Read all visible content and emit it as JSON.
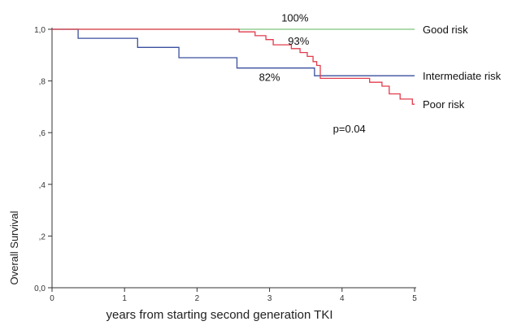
{
  "chart_data": {
    "type": "line",
    "step": true,
    "xlabel": "years from starting second generation TKI",
    "ylabel": "Overall Survival",
    "xlim": [
      0,
      5
    ],
    "ylim": [
      0,
      1
    ],
    "xticks": [
      0,
      1,
      2,
      3,
      4,
      5
    ],
    "xtick_labels": [
      "0",
      "1",
      "2",
      "3",
      "4",
      "5"
    ],
    "yticks": [
      0,
      0.2,
      0.4,
      0.6,
      0.8,
      1.0
    ],
    "ytick_labels": [
      "0,0",
      ",2",
      ",4",
      ",6",
      ",8",
      "1,0"
    ],
    "grid": false,
    "legend": "right-of-plot labels",
    "series": [
      {
        "name": "Good risk",
        "color": "#7ec47e",
        "points": [
          [
            0,
            1.0
          ],
          [
            5,
            1.0
          ]
        ]
      },
      {
        "name": "Intermediate risk",
        "color": "#3a4f9e",
        "points": [
          [
            0,
            1.0
          ],
          [
            0.36,
            1.0
          ],
          [
            0.36,
            0.965
          ],
          [
            1.18,
            0.965
          ],
          [
            1.18,
            0.93
          ],
          [
            1.75,
            0.93
          ],
          [
            1.75,
            0.89
          ],
          [
            2.55,
            0.89
          ],
          [
            2.55,
            0.85
          ],
          [
            3.62,
            0.85
          ],
          [
            3.62,
            0.82
          ],
          [
            5,
            0.82
          ]
        ]
      },
      {
        "name": "Poor risk",
        "color": "#e23b4b",
        "points": [
          [
            0,
            1.0
          ],
          [
            2.58,
            1.0
          ],
          [
            2.58,
            0.99
          ],
          [
            2.8,
            0.99
          ],
          [
            2.8,
            0.975
          ],
          [
            2.95,
            0.975
          ],
          [
            2.95,
            0.96
          ],
          [
            3.05,
            0.96
          ],
          [
            3.05,
            0.94
          ],
          [
            3.3,
            0.94
          ],
          [
            3.3,
            0.925
          ],
          [
            3.42,
            0.925
          ],
          [
            3.42,
            0.91
          ],
          [
            3.52,
            0.91
          ],
          [
            3.52,
            0.895
          ],
          [
            3.6,
            0.895
          ],
          [
            3.6,
            0.875
          ],
          [
            3.65,
            0.875
          ],
          [
            3.65,
            0.86
          ],
          [
            3.7,
            0.86
          ],
          [
            3.7,
            0.81
          ],
          [
            4.38,
            0.81
          ],
          [
            4.38,
            0.795
          ],
          [
            4.55,
            0.795
          ],
          [
            4.55,
            0.78
          ],
          [
            4.65,
            0.78
          ],
          [
            4.65,
            0.75
          ],
          [
            4.8,
            0.75
          ],
          [
            4.8,
            0.73
          ],
          [
            4.97,
            0.73
          ],
          [
            4.97,
            0.71
          ],
          [
            5,
            0.71
          ]
        ]
      }
    ],
    "annotations": [
      {
        "text": "100%",
        "x": 3.35,
        "y": 1.03
      },
      {
        "text": "93%",
        "x": 3.4,
        "y": 0.94
      },
      {
        "text": "82%",
        "x": 3.0,
        "y": 0.8
      },
      {
        "text": "p=0.04",
        "x": 4.1,
        "y": 0.6
      }
    ]
  }
}
